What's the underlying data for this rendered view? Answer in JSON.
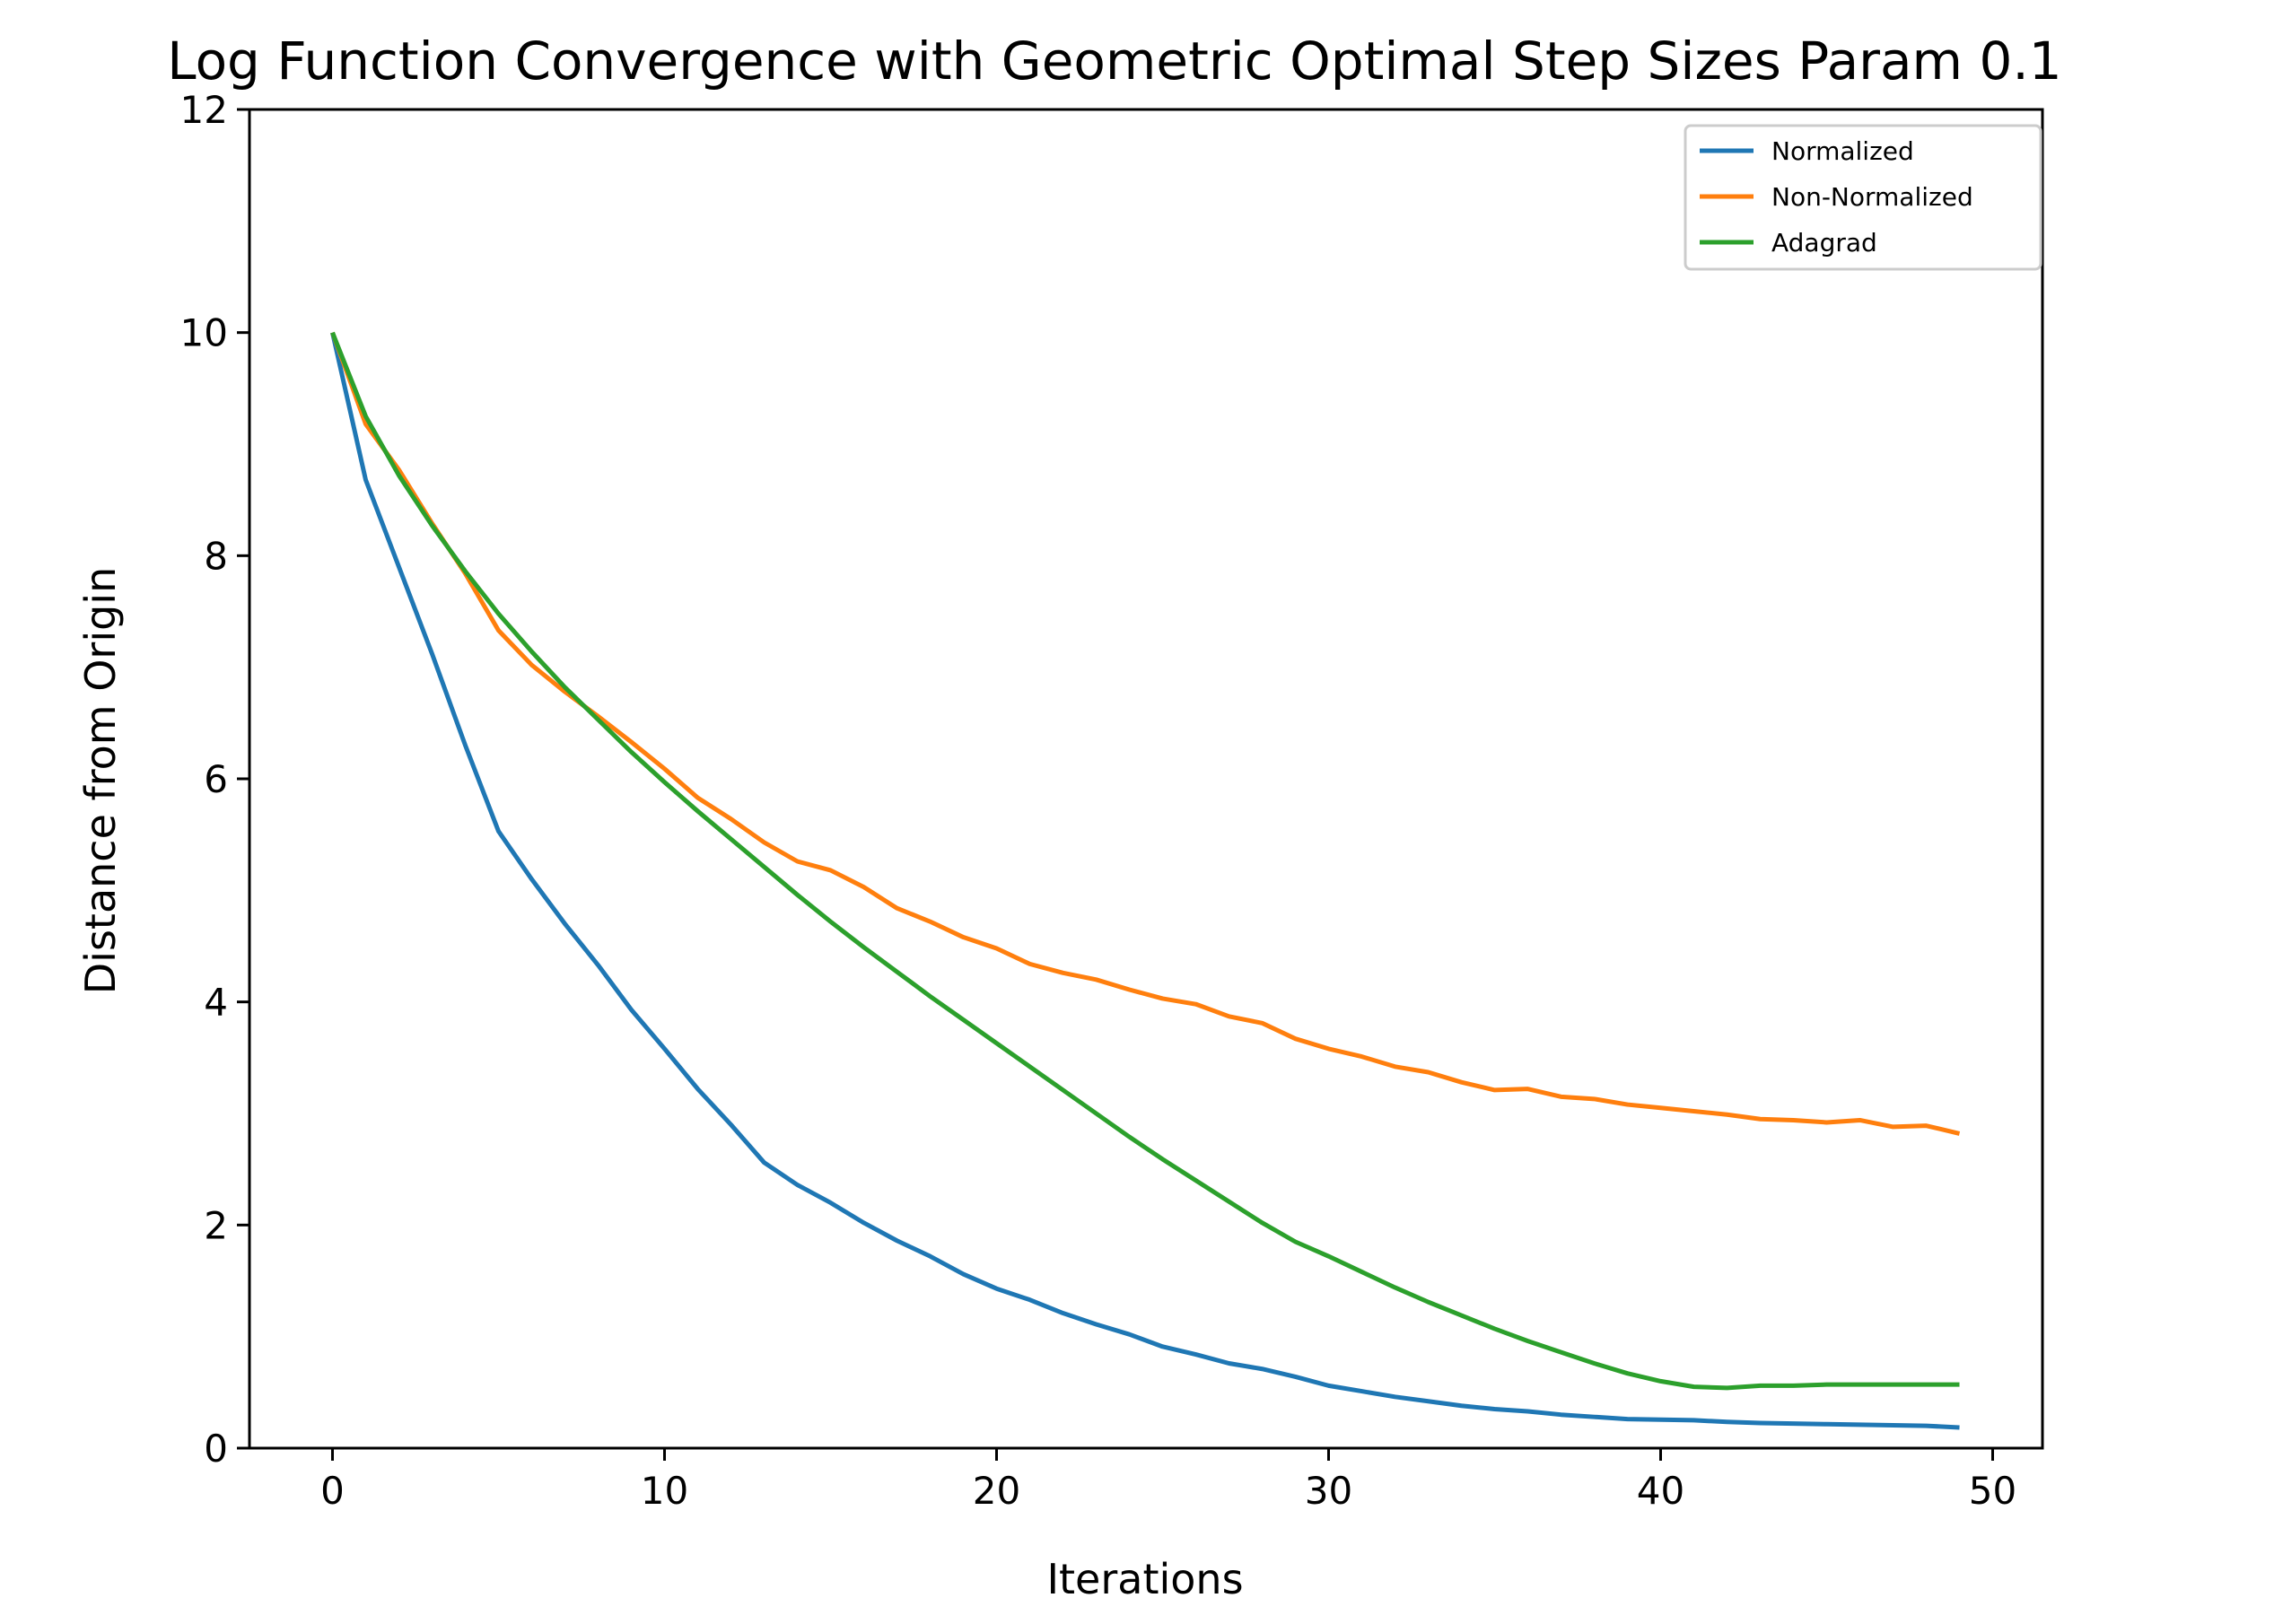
{
  "chart_data": {
    "type": "line",
    "title": "Log Function Convergence with Geometric Optimal Step Sizes Param 0.1",
    "xlabel": "Iterations",
    "ylabel": "Distance from Origin",
    "xlim": [
      -2.5,
      51.5
    ],
    "ylim": [
      0,
      12
    ],
    "xticks": [
      0,
      10,
      20,
      30,
      40,
      50
    ],
    "yticks": [
      0,
      2,
      4,
      6,
      8,
      10,
      12
    ],
    "xtick_labels": [
      "0",
      "10",
      "20",
      "30",
      "40",
      "50"
    ],
    "ytick_labels": [
      "0",
      "2",
      "4",
      "6",
      "8",
      "10",
      "12"
    ],
    "grid": false,
    "legend_position": "top-right",
    "x": [
      0,
      1,
      2,
      3,
      4,
      5,
      6,
      7,
      8,
      9,
      10,
      11,
      12,
      13,
      14,
      15,
      16,
      17,
      18,
      19,
      20,
      21,
      22,
      23,
      24,
      25,
      26,
      27,
      28,
      29,
      30,
      31,
      32,
      33,
      34,
      35,
      36,
      37,
      38,
      39,
      40,
      41,
      42,
      43,
      44,
      45,
      46,
      47,
      48,
      49
    ],
    "series": [
      {
        "name": "Normalized",
        "color": "#1f77b4",
        "values": [
          10.0,
          8.68,
          7.9,
          7.12,
          6.3,
          5.53,
          5.1,
          4.7,
          4.33,
          3.93,
          3.58,
          3.22,
          2.9,
          2.56,
          2.36,
          2.2,
          2.02,
          1.86,
          1.72,
          1.56,
          1.43,
          1.33,
          1.21,
          1.11,
          1.02,
          0.91,
          0.84,
          0.76,
          0.71,
          0.64,
          0.56,
          0.51,
          0.46,
          0.42,
          0.38,
          0.35,
          0.33,
          0.3,
          0.28,
          0.26,
          0.255,
          0.25,
          0.235,
          0.225,
          0.22,
          0.215,
          0.21,
          0.205,
          0.2,
          0.185
        ]
      },
      {
        "name": "Non-Normalized",
        "color": "#ff7f0e",
        "values": [
          10.0,
          9.18,
          8.77,
          8.29,
          7.84,
          7.33,
          7.02,
          6.78,
          6.56,
          6.33,
          6.09,
          5.83,
          5.64,
          5.43,
          5.26,
          5.18,
          5.03,
          4.84,
          4.72,
          4.58,
          4.48,
          4.34,
          4.26,
          4.2,
          4.11,
          4.03,
          3.98,
          3.87,
          3.81,
          3.67,
          3.58,
          3.51,
          3.42,
          3.37,
          3.28,
          3.21,
          3.22,
          3.15,
          3.13,
          3.08,
          3.05,
          3.02,
          2.99,
          2.95,
          2.94,
          2.92,
          2.94,
          2.88,
          2.89,
          2.82
        ]
      },
      {
        "name": "Adagrad",
        "color": "#2ca02c",
        "values": [
          10.0,
          9.25,
          8.72,
          8.27,
          7.86,
          7.48,
          7.14,
          6.82,
          6.53,
          6.24,
          5.97,
          5.71,
          5.46,
          5.21,
          4.96,
          4.72,
          4.49,
          4.27,
          4.05,
          3.84,
          3.63,
          3.42,
          3.21,
          3.0,
          2.79,
          2.59,
          2.4,
          2.21,
          2.02,
          1.85,
          1.72,
          1.58,
          1.44,
          1.31,
          1.19,
          1.07,
          0.96,
          0.86,
          0.76,
          0.67,
          0.6,
          0.55,
          0.54,
          0.56,
          0.56,
          0.57,
          0.57,
          0.57,
          0.57,
          0.57
        ]
      }
    ]
  }
}
